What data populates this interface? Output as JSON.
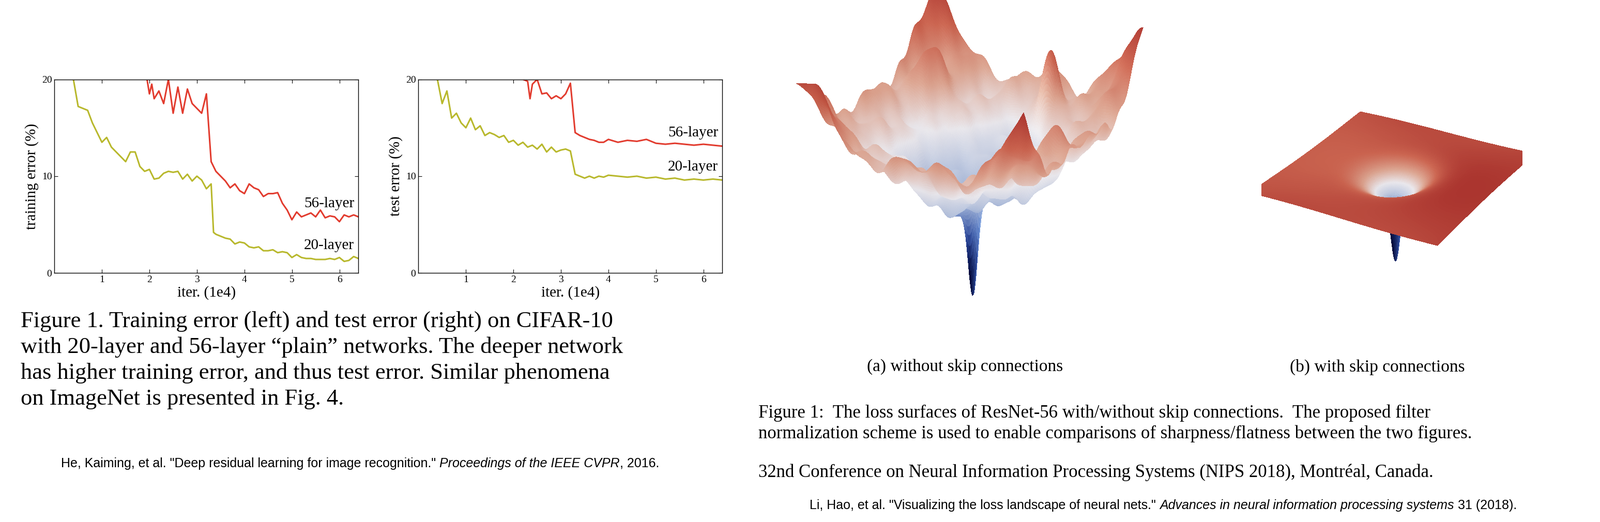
{
  "chart_data": [
    {
      "type": "line",
      "xlabel": "iter. (1e4)",
      "ylabel": "training error (%)",
      "xlim": [
        0,
        6.4
      ],
      "ylim": [
        0,
        20
      ],
      "xticks": [
        1,
        2,
        3,
        4,
        5,
        6
      ],
      "yticks": [
        0,
        10,
        20
      ],
      "series": [
        {
          "name": "56-layer",
          "color": "#e23b2e",
          "x": [
            1.95,
            2.0,
            2.05,
            2.1,
            2.2,
            2.3,
            2.4,
            2.5,
            2.6,
            2.7,
            2.8,
            2.9,
            3.0,
            3.1,
            3.2,
            3.3,
            3.4,
            3.5,
            3.6,
            3.7,
            3.8,
            3.9,
            4.0,
            4.1,
            4.2,
            4.3,
            4.4,
            4.5,
            4.6,
            4.7,
            4.8,
            4.9,
            5.0,
            5.1,
            5.2,
            5.3,
            5.4,
            5.5,
            5.6,
            5.7,
            5.8,
            5.9,
            6.0,
            6.1,
            6.2,
            6.3,
            6.4
          ],
          "values": [
            20,
            18.5,
            19.5,
            18,
            18.8,
            17.5,
            20,
            16.5,
            19.2,
            16.5,
            19,
            17.5,
            17,
            16.5,
            18.5,
            11.5,
            10.5,
            10,
            9.5,
            8.8,
            9.2,
            8.5,
            8.2,
            9.2,
            8.8,
            8.6,
            7.9,
            8.2,
            8.2,
            8.3,
            7.2,
            6.5,
            5.5,
            6.3,
            5.8,
            6,
            6.2,
            5.8,
            6.5,
            5.7,
            5.9,
            5.8,
            5.3,
            6,
            5.8,
            6,
            5.8
          ]
        },
        {
          "name": "20-layer",
          "color": "#b8b82c",
          "x": [
            0.4,
            0.5,
            0.6,
            0.7,
            0.8,
            0.9,
            1.0,
            1.1,
            1.2,
            1.3,
            1.4,
            1.5,
            1.6,
            1.7,
            1.8,
            1.9,
            2.0,
            2.1,
            2.2,
            2.3,
            2.4,
            2.5,
            2.6,
            2.7,
            2.8,
            2.9,
            3.0,
            3.1,
            3.2,
            3.3,
            3.35,
            3.4,
            3.5,
            3.6,
            3.7,
            3.8,
            3.9,
            4.0,
            4.1,
            4.2,
            4.3,
            4.4,
            4.5,
            4.6,
            4.7,
            4.8,
            4.9,
            5.0,
            5.1,
            5.2,
            5.3,
            5.4,
            5.5,
            5.6,
            5.7,
            5.8,
            5.9,
            6.0,
            6.1,
            6.2,
            6.3,
            6.4
          ],
          "values": [
            20,
            17.2,
            17,
            16.8,
            15.5,
            14.5,
            13.5,
            14,
            13,
            12.5,
            12,
            11.5,
            12.5,
            12.5,
            11,
            10.5,
            10.7,
            9.7,
            9.8,
            10.3,
            10.5,
            10.4,
            10.5,
            9.7,
            10.2,
            9.5,
            10,
            9.6,
            8.7,
            9.2,
            4.2,
            4,
            3.8,
            3.6,
            3.5,
            3,
            3.2,
            3.1,
            2.7,
            2.6,
            2.7,
            2.3,
            2.3,
            2.4,
            2.1,
            2.2,
            2.1,
            1.6,
            1.9,
            1.6,
            1.5,
            1.5,
            1.4,
            1.4,
            1.4,
            1.5,
            1.4,
            1.6,
            1.2,
            1.3,
            1.7,
            1.5
          ]
        }
      ]
    },
    {
      "type": "line",
      "xlabel": "iter. (1e4)",
      "ylabel": "test error (%)",
      "xlim": [
        0,
        6.4
      ],
      "ylim": [
        0,
        20
      ],
      "xticks": [
        1,
        2,
        3,
        4,
        5,
        6
      ],
      "yticks": [
        0,
        10,
        20
      ],
      "series": [
        {
          "name": "56-layer",
          "color": "#e23b2e",
          "x": [
            2.2,
            2.3,
            2.35,
            2.4,
            2.5,
            2.6,
            2.7,
            2.8,
            2.9,
            3.0,
            3.1,
            3.2,
            3.3,
            3.4,
            3.5,
            3.6,
            3.7,
            3.8,
            3.9,
            4.0,
            4.2,
            4.4,
            4.6,
            4.8,
            5.0,
            5.2,
            5.4,
            5.6,
            5.8,
            6.0,
            6.2,
            6.4
          ],
          "values": [
            20,
            19.8,
            18,
            19.5,
            20,
            18.5,
            18.6,
            18,
            18.3,
            18,
            18.5,
            19.6,
            14.5,
            14.2,
            14,
            13.8,
            13.7,
            13.5,
            13.5,
            13.8,
            13.5,
            13.7,
            13.6,
            13.8,
            13.4,
            13.3,
            13.4,
            13.3,
            13.2,
            13.3,
            13.2,
            13.1
          ]
        },
        {
          "name": "20-layer",
          "color": "#b8b82c",
          "x": [
            0.4,
            0.5,
            0.6,
            0.7,
            0.8,
            0.9,
            1.0,
            1.1,
            1.2,
            1.3,
            1.4,
            1.5,
            1.6,
            1.7,
            1.8,
            1.9,
            2.0,
            2.1,
            2.2,
            2.3,
            2.4,
            2.5,
            2.6,
            2.7,
            2.8,
            2.9,
            3.0,
            3.1,
            3.2,
            3.3,
            3.4,
            3.5,
            3.6,
            3.7,
            3.8,
            3.9,
            4.0,
            4.2,
            4.4,
            4.6,
            4.8,
            5.0,
            5.2,
            5.4,
            5.6,
            5.8,
            6.0,
            6.2,
            6.4
          ],
          "values": [
            20,
            17.5,
            18.8,
            16,
            16.5,
            15.5,
            15,
            16,
            14.8,
            15.2,
            14.2,
            14.5,
            14.3,
            14,
            14.2,
            13.5,
            13.7,
            13.2,
            13.5,
            13,
            13.2,
            12.8,
            13.3,
            12.5,
            13,
            12.5,
            12.7,
            12.8,
            12.6,
            10.2,
            10,
            9.8,
            10,
            9.8,
            10,
            9.9,
            10.1,
            10,
            9.9,
            10,
            9.8,
            9.9,
            9.7,
            9.8,
            9.6,
            9.7,
            9.6,
            9.7,
            9.6
          ]
        }
      ]
    }
  ],
  "left_figure": {
    "caption": "Figure 1. Training error (left) and test error (right) on CIFAR-10 with 20-layer and 56-layer “plain” networks. The deeper network has higher training error, and thus test error. Similar phenomena on ImageNet is presented in Fig. 4.",
    "citation": "He, Kaiming, et al. \"Deep residual learning for image recognition.\" Proceedings of the IEEE CVPR, 2016.",
    "citation_italic": "Proceedings of the IEEE CVPR"
  },
  "right_figure": {
    "panels": [
      {
        "label": "(a) without skip connections"
      },
      {
        "label": "(b) with skip connections"
      }
    ],
    "caption": "Figure 1:  The loss surfaces of ResNet-56 with/without skip connections.  The proposed filter normalization scheme is used to enable comparisons of sharpness/flatness between the two figures.",
    "conference": "32nd Conference on Neural Information Processing Systems (NIPS 2018), Montréal, Canada.",
    "citation": "Li, Hao, et al. \"Visualizing the loss landscape of neural nets.\" Advances in neural information processing systems 31 (2018).",
    "citation_italic": "Advances in neural information processing systems"
  }
}
